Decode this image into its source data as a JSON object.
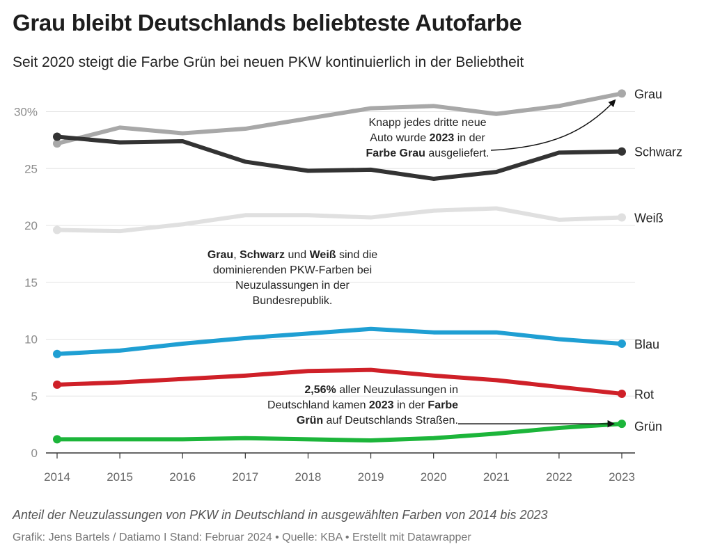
{
  "title": "Grau bleibt Deutschlands beliebteste Autofarbe",
  "subtitle": "Seit 2020 steigt die Farbe Grün bei neuen PKW kontinuierlich in der Beliebtheit",
  "caption": "Anteil der Neuzulassungen von PKW in Deutschland in ausgewählten Farben von 2014 bis 2023",
  "source": {
    "author": "Grafik: Jens Bartels / Datiamo I Stand: Februar 2024",
    "sep": "•",
    "quelle": "Quelle: KBA",
    "tool": "Erstellt mit Datawrapper"
  },
  "annotations": {
    "grau": {
      "l1": "Knapp jedes dritte neue",
      "l2a": "Auto wurde ",
      "l2b": "2023",
      "l2c": " in der",
      "l3a": "Farbe Grau",
      "l3b": " ausgeliefert."
    },
    "dominant": {
      "a": "Grau",
      "b": ", ",
      "c": "Schwarz",
      "d": " und ",
      "e": "Weiß",
      "f": " sind die",
      "l2": "dominierenden PKW-Farben bei",
      "l3": "Neuzulassungen in der",
      "l4": "Bundesrepublik."
    },
    "gruen": {
      "a": "2,56%",
      "b": " aller Neuzulassungen in",
      "l2a": "Deutschland kamen ",
      "l2b": "2023",
      "l2c": " in der ",
      "l2d": "Farbe",
      "l3a": "Grün",
      "l3b": " auf Deutschlands Straßen."
    }
  },
  "chart_data": {
    "type": "line",
    "title": "Grau bleibt Deutschlands beliebteste Autofarbe",
    "xlabel": "",
    "ylabel": "",
    "x": [
      2014,
      2015,
      2016,
      2017,
      2018,
      2019,
      2020,
      2021,
      2022,
      2023
    ],
    "ylim": [
      0,
      32
    ],
    "yticks": [
      0,
      5,
      10,
      15,
      20,
      25,
      30
    ],
    "ytick_labels": [
      "0",
      "5",
      "10",
      "15",
      "20",
      "25",
      "30%"
    ],
    "series": [
      {
        "name": "Grau",
        "color": "#a8a8a8",
        "values": [
          27.2,
          28.6,
          28.1,
          28.5,
          29.4,
          30.3,
          30.5,
          29.8,
          30.5,
          31.6
        ]
      },
      {
        "name": "Schwarz",
        "color": "#333333",
        "values": [
          27.8,
          27.3,
          27.4,
          25.6,
          24.8,
          24.9,
          24.1,
          24.7,
          26.4,
          26.5
        ]
      },
      {
        "name": "Weiß",
        "color": "#e0e0e0",
        "values": [
          19.6,
          19.5,
          20.1,
          20.9,
          20.9,
          20.7,
          21.3,
          21.5,
          20.5,
          20.7
        ]
      },
      {
        "name": "Blau",
        "color": "#1f9fd3",
        "values": [
          8.7,
          9.0,
          9.6,
          10.1,
          10.5,
          10.9,
          10.6,
          10.6,
          10.0,
          9.6
        ]
      },
      {
        "name": "Rot",
        "color": "#cf2028",
        "values": [
          6.0,
          6.2,
          6.5,
          6.8,
          7.2,
          7.3,
          6.8,
          6.4,
          5.8,
          5.2
        ]
      },
      {
        "name": "Grün",
        "color": "#1cb53a",
        "values": [
          1.2,
          1.2,
          1.2,
          1.3,
          1.2,
          1.1,
          1.3,
          1.7,
          2.2,
          2.56
        ]
      }
    ]
  }
}
